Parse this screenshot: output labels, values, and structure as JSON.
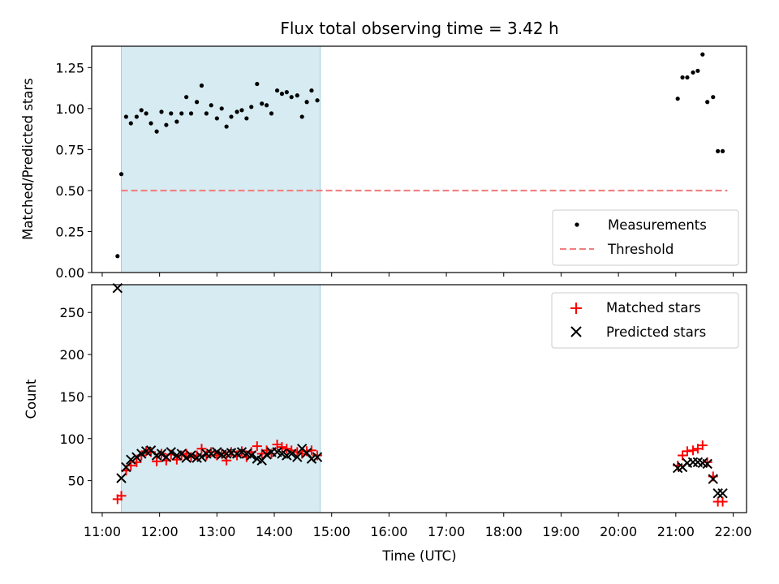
{
  "chart_data": [
    {
      "type": "scatter",
      "title": "Flux total observing time = 3.42 h",
      "xlabel": "",
      "ylabel": "Matched/Predicted stars",
      "xlim": [
        "10:49",
        "22:14"
      ],
      "ylim": [
        0.0,
        1.38
      ],
      "yticks": [
        "0.00",
        "0.25",
        "0.50",
        "0.75",
        "1.00",
        "1.25"
      ],
      "highlight_span": [
        "11:20",
        "14:48"
      ],
      "legend_position": "lower-right",
      "series": [
        {
          "name": "Measurements",
          "kind": "points",
          "color": "#000000",
          "x": [
            "11:16",
            "11:20",
            "11:25",
            "11:30",
            "11:36",
            "11:41",
            "11:46",
            "11:51",
            "11:57",
            "12:02",
            "12:07",
            "12:12",
            "12:18",
            "12:23",
            "12:28",
            "12:33",
            "12:39",
            "12:44",
            "12:49",
            "12:54",
            "13:00",
            "13:05",
            "13:10",
            "13:15",
            "13:21",
            "13:26",
            "13:31",
            "13:36",
            "13:42",
            "13:47",
            "13:52",
            "13:57",
            "14:03",
            "14:08",
            "14:13",
            "14:18",
            "14:24",
            "14:29",
            "14:34",
            "14:39",
            "14:45",
            "21:02",
            "21:07",
            "21:12",
            "21:18",
            "21:23",
            "21:28",
            "21:33",
            "21:39",
            "21:44",
            "21:49"
          ],
          "y": [
            0.1,
            0.6,
            0.95,
            0.91,
            0.95,
            0.99,
            0.97,
            0.91,
            0.86,
            0.98,
            0.9,
            0.97,
            0.92,
            0.97,
            1.07,
            0.97,
            1.04,
            1.14,
            0.97,
            1.02,
            0.94,
            1.0,
            0.89,
            0.95,
            0.98,
            0.99,
            0.94,
            1.01,
            1.15,
            1.03,
            1.02,
            0.97,
            1.11,
            1.09,
            1.1,
            1.07,
            1.08,
            0.95,
            1.04,
            1.11,
            1.05,
            1.06,
            1.19,
            1.19,
            1.22,
            1.23,
            1.33,
            1.04,
            1.07,
            0.74,
            0.74
          ]
        },
        {
          "name": "Threshold",
          "kind": "dashed-line",
          "color": "#f08080",
          "x": [
            "11:20",
            "21:54"
          ],
          "y": [
            0.5,
            0.5
          ]
        }
      ]
    },
    {
      "type": "scatter",
      "title": "",
      "xlabel": "Time (UTC)",
      "ylabel": "Count",
      "xlim": [
        "10:49",
        "22:14"
      ],
      "ylim": [
        12,
        283
      ],
      "yticks": [
        "50",
        "100",
        "150",
        "200",
        "250"
      ],
      "xticks": [
        "11:00",
        "12:00",
        "13:00",
        "14:00",
        "15:00",
        "16:00",
        "17:00",
        "18:00",
        "19:00",
        "20:00",
        "21:00",
        "22:00"
      ],
      "highlight_span": [
        "11:20",
        "14:48"
      ],
      "legend_position": "top-right",
      "series": [
        {
          "name": "Matched stars",
          "kind": "plus",
          "color": "#ff0000",
          "x": [
            "11:16",
            "11:20",
            "11:25",
            "11:30",
            "11:36",
            "11:41",
            "11:46",
            "11:51",
            "11:57",
            "12:02",
            "12:07",
            "12:12",
            "12:18",
            "12:23",
            "12:28",
            "12:33",
            "12:39",
            "12:44",
            "12:49",
            "12:54",
            "13:00",
            "13:05",
            "13:10",
            "13:15",
            "13:21",
            "13:26",
            "13:31",
            "13:36",
            "13:42",
            "13:47",
            "13:52",
            "13:57",
            "14:03",
            "14:08",
            "14:13",
            "14:18",
            "14:24",
            "14:29",
            "14:34",
            "14:39",
            "14:45",
            "21:02",
            "21:07",
            "21:12",
            "21:18",
            "21:23",
            "21:28",
            "21:33",
            "21:39",
            "21:44",
            "21:49"
          ],
          "y": [
            28,
            32,
            62,
            68,
            72,
            80,
            85,
            84,
            73,
            82,
            74,
            81,
            75,
            80,
            82,
            78,
            80,
            88,
            80,
            84,
            80,
            82,
            74,
            84,
            80,
            85,
            78,
            84,
            91,
            82,
            86,
            82,
            93,
            90,
            88,
            86,
            84,
            82,
            85,
            86,
            80,
            68,
            80,
            85,
            86,
            88,
            92,
            72,
            55,
            25,
            25
          ]
        },
        {
          "name": "Predicted stars",
          "kind": "x",
          "color": "#000000",
          "x": [
            "11:16",
            "11:20",
            "11:25",
            "11:30",
            "11:36",
            "11:41",
            "11:46",
            "11:51",
            "11:57",
            "12:02",
            "12:07",
            "12:12",
            "12:18",
            "12:23",
            "12:28",
            "12:33",
            "12:39",
            "12:44",
            "12:49",
            "12:54",
            "13:00",
            "13:05",
            "13:10",
            "13:15",
            "13:21",
            "13:26",
            "13:31",
            "13:36",
            "13:42",
            "13:47",
            "13:52",
            "13:57",
            "14:03",
            "14:08",
            "14:13",
            "14:18",
            "14:24",
            "14:29",
            "14:34",
            "14:39",
            "14:45",
            "21:02",
            "21:07",
            "21:12",
            "21:18",
            "21:23",
            "21:28",
            "21:33",
            "21:39",
            "21:44",
            "21:49"
          ],
          "y": [
            279,
            53,
            66,
            75,
            78,
            82,
            85,
            86,
            80,
            82,
            78,
            84,
            80,
            82,
            77,
            80,
            77,
            78,
            82,
            82,
            84,
            81,
            82,
            83,
            82,
            84,
            82,
            80,
            76,
            74,
            81,
            84,
            84,
            82,
            80,
            82,
            78,
            88,
            83,
            76,
            78,
            65,
            66,
            71,
            72,
            72,
            71,
            70,
            52,
            35,
            35
          ]
        }
      ]
    }
  ]
}
